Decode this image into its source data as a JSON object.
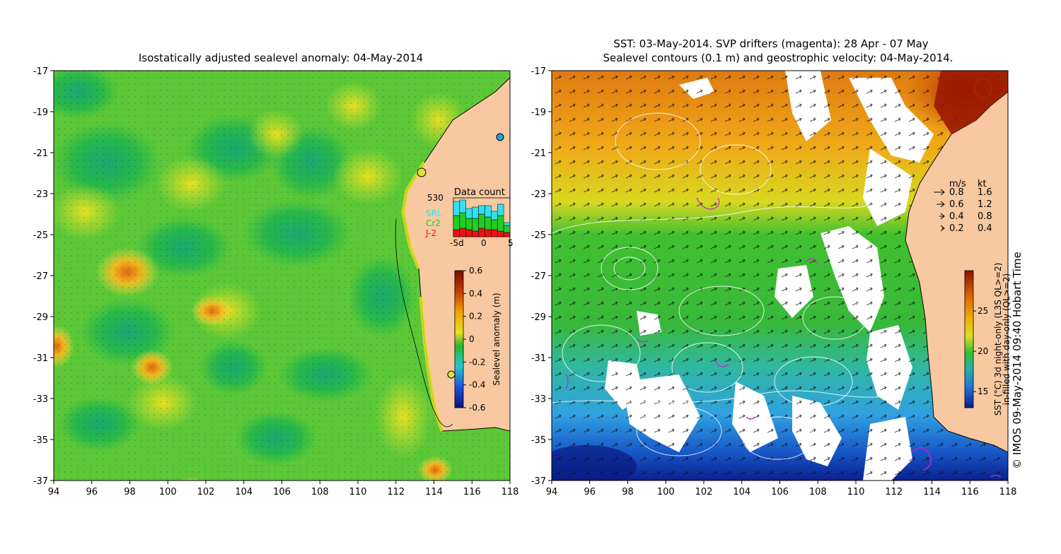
{
  "left_panel": {
    "title": "Isostatically adjusted sealevel anomaly: 04-May-2014",
    "lat_ticks": [
      "-17",
      "-19",
      "-21",
      "-23",
      "-25",
      "-27",
      "-29",
      "-31",
      "-33",
      "-35",
      "-37"
    ],
    "lon_ticks": [
      "94",
      "96",
      "98",
      "100",
      "102",
      "104",
      "106",
      "108",
      "110",
      "112",
      "114",
      "116",
      "118"
    ],
    "data_count": {
      "label": "Data count",
      "max_label": "530",
      "x_ticks": [
        "-5d",
        "0",
        "5"
      ],
      "legend": [
        "SRL",
        "Cr2",
        "J-2"
      ],
      "colors": {
        "SRL": "#33e0f0",
        "Cr2": "#22cc22",
        "J-2": "#ee1111"
      },
      "bars": [
        {
          "srl": 20,
          "cr2": 20,
          "j2": 10
        },
        {
          "srl": 18,
          "cr2": 22,
          "j2": 12
        },
        {
          "srl": 14,
          "cr2": 16,
          "j2": 10
        },
        {
          "srl": 16,
          "cr2": 18,
          "j2": 8
        },
        {
          "srl": 12,
          "cr2": 20,
          "j2": 12
        },
        {
          "srl": 16,
          "cr2": 18,
          "j2": 10
        },
        {
          "srl": 12,
          "cr2": 14,
          "j2": 10
        },
        {
          "srl": 16,
          "cr2": 22,
          "j2": 8
        },
        {
          "srl": 4,
          "cr2": 10,
          "j2": 6
        }
      ]
    },
    "colorbar": {
      "label": "Sealevel anomaly (m)",
      "ticks": [
        "0.6",
        "0.4",
        "0.2",
        "0",
        "-0.2",
        "-0.4",
        "-0.6"
      ],
      "colors": [
        "#7a0c00",
        "#c43a00",
        "#f0a000",
        "#e8e020",
        "#2ab82a",
        "#22c8d0",
        "#2050e0",
        "#0a1080"
      ]
    }
  },
  "right_panel": {
    "title_line1": "SST: 03-May-2014. SVP drifters (magenta): 28 Apr - 07 May",
    "title_line2": "Sealevel contours (0.1 m) and geostrophic velocity: 04-May-2014.",
    "lat_ticks": [
      "-17",
      "-19",
      "-21",
      "-23",
      "-25",
      "-27",
      "-29",
      "-31",
      "-33",
      "-35",
      "-37"
    ],
    "lon_ticks": [
      "94",
      "96",
      "98",
      "100",
      "102",
      "104",
      "106",
      "108",
      "110",
      "112",
      "114",
      "116",
      "118"
    ],
    "speed_legend": {
      "headers": [
        "m/s",
        "kt"
      ],
      "rows": [
        {
          "ms": "0.8",
          "kt": "1.6"
        },
        {
          "ms": "0.6",
          "kt": "1.2"
        },
        {
          "ms": "0.4",
          "kt": "0.8"
        },
        {
          "ms": "0.2",
          "kt": "0.4"
        }
      ]
    },
    "colorbar": {
      "ticks": [
        "25",
        "20",
        "15"
      ],
      "label1": "SST (°C) 3d night-only (L3S QL>=2)",
      "label2": "in-filled with day-only (QL>=2)",
      "colors": [
        "#8a1200",
        "#e06000",
        "#f0b000",
        "#d8e020",
        "#30c030",
        "#22b0b0",
        "#2070d8",
        "#0a1a90"
      ]
    },
    "credit": "© IMOS 09-May-2014 09:40 Hobart Time"
  },
  "land_color": "#f8c8a0"
}
